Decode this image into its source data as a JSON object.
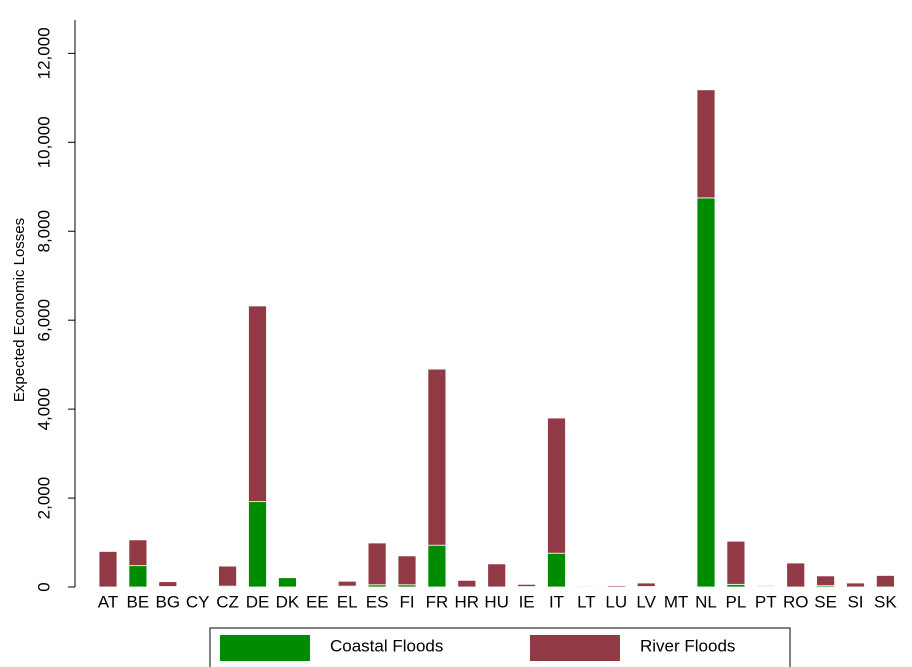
{
  "chart_data": {
    "type": "stacked_bar",
    "y_label": "Expected Economic Losses",
    "categories": [
      "AT",
      "BE",
      "BG",
      "CY",
      "CZ",
      "DE",
      "DK",
      "EE",
      "EL",
      "ES",
      "FI",
      "FR",
      "HR",
      "HU",
      "IE",
      "IT",
      "LT",
      "LU",
      "LV",
      "MT",
      "NL",
      "PL",
      "PT",
      "RO",
      "SE",
      "SI",
      "SK"
    ],
    "series": [
      {
        "name": "Coastal Floods",
        "color": "#008c00",
        "values": [
          0,
          480,
          10,
          0,
          20,
          1920,
          210,
          0,
          20,
          50,
          50,
          940,
          0,
          0,
          10,
          760,
          10,
          0,
          10,
          0,
          8750,
          60,
          20,
          0,
          30,
          0,
          0
        ]
      },
      {
        "name": "River Floods",
        "color": "#913a45",
        "values": [
          800,
          580,
          110,
          0,
          450,
          4400,
          10,
          0,
          110,
          940,
          650,
          3960,
          150,
          520,
          50,
          3040,
          20,
          30,
          80,
          0,
          2430,
          970,
          20,
          540,
          220,
          90,
          260
        ]
      }
    ],
    "ylim": [
      0,
      12750
    ],
    "yticks": [
      0,
      {
        "value": 2000,
        "label": "2,000"
      },
      {
        "value": 4000,
        "label": "4,000"
      },
      {
        "value": 6000,
        "label": "6,000"
      },
      {
        "value": 8000,
        "label": "8,000"
      },
      {
        "value": 10000,
        "label": "10,000"
      },
      {
        "value": 12000,
        "label": "12,000"
      }
    ],
    "legend": "bottom"
  }
}
